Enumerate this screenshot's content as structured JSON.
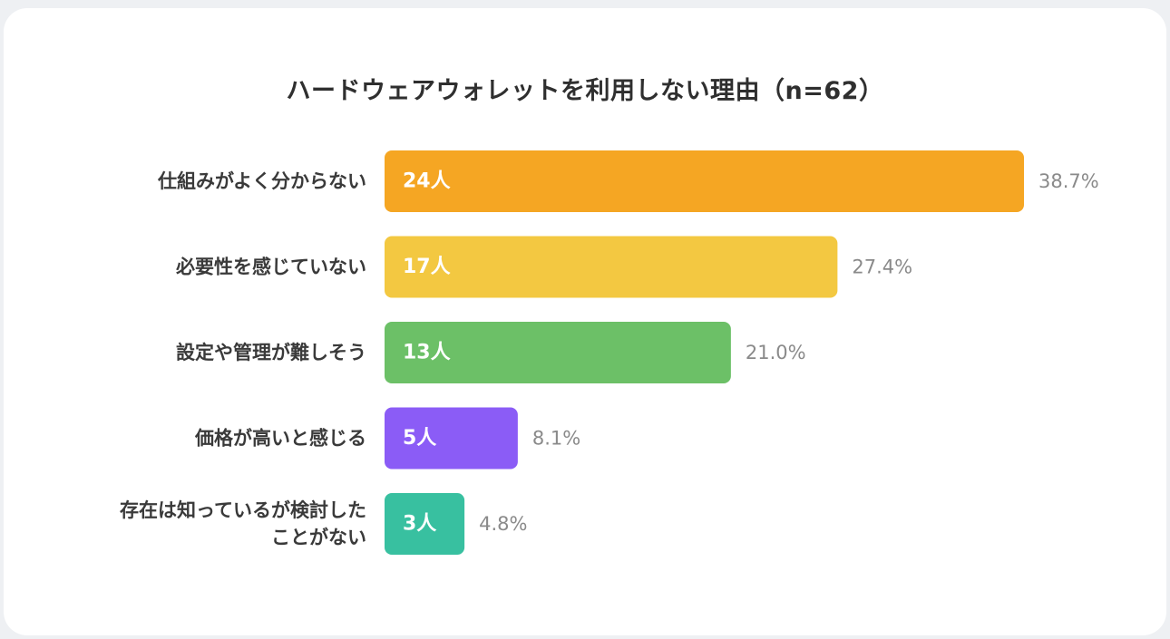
{
  "chart_data": {
    "type": "bar",
    "orientation": "horizontal",
    "title": "ハードウェアウォレットを利用しない理由（n=62）",
    "n": 62,
    "categories": [
      [
        "仕組みがよく分からない"
      ],
      [
        "必要性を感じていない"
      ],
      [
        "設定や管理が難しそう"
      ],
      [
        "価格が高いと感じる"
      ],
      [
        "存在は知っているが検討した",
        "ことがない"
      ]
    ],
    "values": [
      24,
      17,
      13,
      5,
      3
    ],
    "value_labels": [
      "24人",
      "17人",
      "13人",
      "5人",
      "3人"
    ],
    "percent_labels": [
      "38.7%",
      "27.4%",
      "21.0%",
      "8.1%",
      "4.8%"
    ],
    "colors": [
      "#f5a623",
      "#f3c841",
      "#6cc067",
      "#8b5cf6",
      "#38c0a0"
    ],
    "xlim": [
      0,
      24
    ],
    "grid": false,
    "legend": "none"
  }
}
